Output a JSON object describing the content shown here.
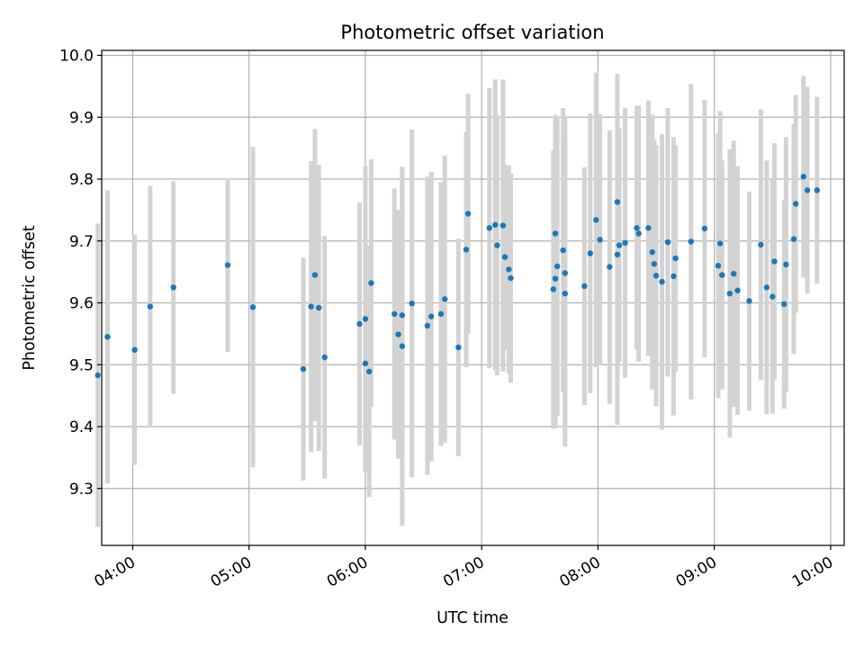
{
  "chart_data": {
    "type": "scatter",
    "title": "Photometric offset variation",
    "xlabel": "UTC time",
    "ylabel": "Photometric offset",
    "x_ticks": [
      "04:00",
      "05:00",
      "06:00",
      "07:00",
      "08:00",
      "09:00",
      "10:00"
    ],
    "y_ticks": [
      "9.3",
      "9.4",
      "9.5",
      "9.6",
      "9.7",
      "9.8",
      "9.9",
      "10.0"
    ],
    "xlim": [
      "03:44",
      "10:07"
    ],
    "ylim": [
      9.208,
      10.008
    ],
    "grid": true,
    "colors": {
      "point": "#1f77b4",
      "errorbar": "#d3d3d3",
      "grid": "#b0b0b0"
    },
    "series": [
      {
        "x": [
          "03:42",
          "03:47",
          "04:01",
          "04:09",
          "04:21",
          "04:49",
          "05:02",
          "05:28",
          "05:32",
          "05:34",
          "05:36",
          "05:39",
          "05:57",
          "06:00",
          "06:00",
          "06:02",
          "06:03",
          "06:15",
          "06:17",
          "06:19",
          "06:19",
          "06:24",
          "06:32",
          "06:34",
          "06:39",
          "06:41",
          "06:48",
          "06:52",
          "06:53",
          "07:04",
          "07:07",
          "07:08",
          "07:11",
          "07:12",
          "07:14",
          "07:15",
          "07:37",
          "07:38",
          "07:38",
          "07:39",
          "07:42",
          "07:43",
          "07:43",
          "07:53",
          "07:56",
          "07:59",
          "08:01",
          "08:06",
          "08:10",
          "08:10",
          "08:11",
          "08:14",
          "08:20",
          "08:21",
          "08:26",
          "08:28",
          "08:29",
          "08:30",
          "08:33",
          "08:36",
          "08:39",
          "08:40",
          "08:48",
          "08:55",
          "09:02",
          "09:03",
          "09:04",
          "09:08",
          "09:10",
          "09:12",
          "09:18",
          "09:24",
          "09:27",
          "09:30",
          "09:31",
          "09:36",
          "09:37",
          "09:41",
          "09:42",
          "09:46",
          "09:48",
          "09:53"
        ],
        "y": [
          9.483,
          9.545,
          9.524,
          9.594,
          9.625,
          9.661,
          9.593,
          9.493,
          9.594,
          9.645,
          9.592,
          9.512,
          9.566,
          9.502,
          9.574,
          9.489,
          9.632,
          9.582,
          9.549,
          9.58,
          9.53,
          9.599,
          9.563,
          9.578,
          9.582,
          9.606,
          9.528,
          9.686,
          9.744,
          9.721,
          9.726,
          9.693,
          9.725,
          9.674,
          9.654,
          9.64,
          9.622,
          9.712,
          9.639,
          9.659,
          9.685,
          9.648,
          9.615,
          9.627,
          9.68,
          9.734,
          9.702,
          9.658,
          9.763,
          9.678,
          9.693,
          9.697,
          9.721,
          9.712,
          9.721,
          9.682,
          9.663,
          9.644,
          9.634,
          9.698,
          9.643,
          9.672,
          9.699,
          9.72,
          9.66,
          9.696,
          9.645,
          9.615,
          9.647,
          9.62,
          9.603,
          9.694,
          9.625,
          9.61,
          9.667,
          9.598,
          9.662,
          9.703,
          9.76,
          9.804,
          9.782,
          9.782
        ],
        "err": [
          0.245,
          0.237,
          0.186,
          0.195,
          0.172,
          0.14,
          0.259,
          0.18,
          0.235,
          0.236,
          0.231,
          0.196,
          0.196,
          0.174,
          0.247,
          0.203,
          0.2,
          0.203,
          0.201,
          0.224,
          0.29,
          0.281,
          0.241,
          0.234,
          0.213,
          0.232,
          0.176,
          0.19,
          0.194,
          0.226,
          0.235,
          0.21,
          0.236,
          0.15,
          0.168,
          0.169,
          0.225,
          0.192,
          0.242,
          0.242,
          0.23,
          0.252,
          0.247,
          0.192,
          0.226,
          0.238,
          0.203,
          0.221,
          0.207,
          0.275,
          0.189,
          0.218,
          0.197,
          0.207,
          0.206,
          0.222,
          0.201,
          0.211,
          0.239,
          0.217,
          0.225,
          0.183,
          0.255,
          0.208,
          0.214,
          0.214,
          0.185,
          0.233,
          0.215,
          0.201,
          0.177,
          0.219,
          0.205,
          0.189,
          0.191,
          0.169,
          0.206,
          0.186,
          0.176,
          0.163,
          0.167,
          0.151
        ]
      }
    ]
  }
}
